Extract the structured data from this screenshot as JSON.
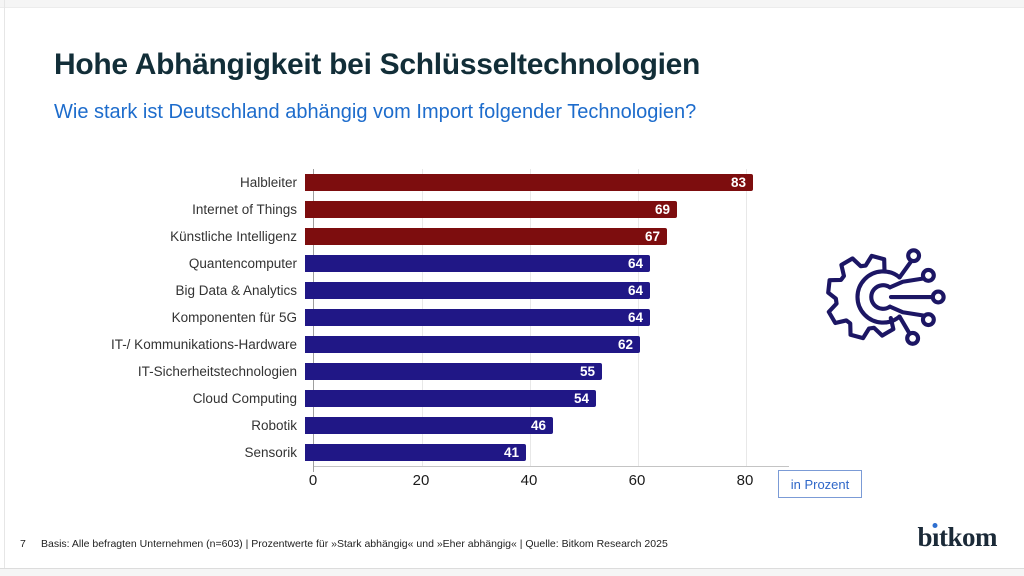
{
  "slide": {
    "title": "Hohe Abhängigkeit bei Schlüsseltechnologien",
    "subtitle": "Wie stark ist Deutschland abhängig vom Import folgender Technologien?",
    "unit_badge": "in Prozent",
    "page_number": "7",
    "footnote": "Basis: Alle befragten Unternehmen (n=603) | Prozentwerte für »Stark abhängig« und »Eher abhängig« | Quelle: Bitkom Research 2025",
    "logo": {
      "text": "bitkom",
      "pre": "b",
      "i_dotless": "ı",
      "post": "tkom"
    }
  },
  "colors": {
    "highlight_bar": "#7d0d0e",
    "base_bar": "#201786",
    "subtitle_blue": "#1d6ccc",
    "title_dark": "#122e38",
    "icon_navy": "#1c1664",
    "badge_blue": "#2f67c8",
    "logo_dot_blue": "#2e6fd0"
  },
  "icons": [
    {
      "name": "technology-gear-circuit-icon",
      "description": "outlined gear merging into circuit lines with node circles"
    }
  ],
  "chart_data": {
    "type": "bar",
    "orientation": "horizontal",
    "title": "Hohe Abhängigkeit bei Schlüsseltechnologien",
    "subtitle": "Wie stark ist Deutschland abhängig vom Import folgender Technologien?",
    "unit_label": "in Prozent",
    "categories": [
      "Halbleiter",
      "Internet of Things",
      "Künstliche Intelligenz",
      "Quantencomputer",
      "Big Data & Analytics",
      "Komponenten für 5G",
      "IT-/ Kommunikations-Hardware",
      "IT-Sicherheitstechnologien",
      "Cloud Computing",
      "Robotik",
      "Sensorik"
    ],
    "values": [
      83,
      69,
      67,
      64,
      64,
      64,
      62,
      55,
      54,
      46,
      41
    ],
    "bar_colors": [
      "#7d0d0e",
      "#7d0d0e",
      "#7d0d0e",
      "#201786",
      "#201786",
      "#201786",
      "#201786",
      "#201786",
      "#201786",
      "#201786",
      "#201786"
    ],
    "value_label_position": "inside-end",
    "value_label_color": "#ffffff",
    "x_ticks": [
      0,
      20,
      40,
      60,
      80
    ],
    "xlim": [
      0,
      88
    ],
    "grid": true,
    "legend": "none",
    "source": "Bitkom Research 2025"
  }
}
